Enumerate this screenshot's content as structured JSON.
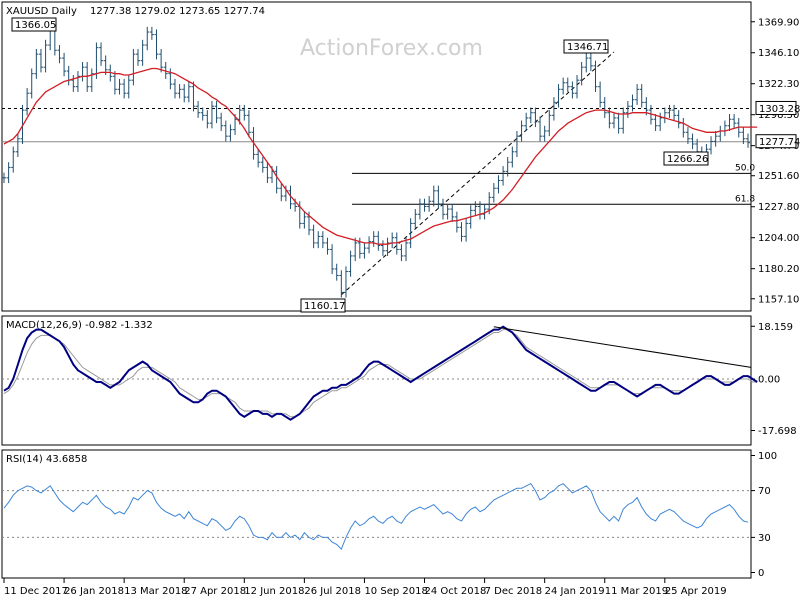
{
  "chart_data": {
    "type": "line",
    "watermark": "ActionForex.com",
    "price_panel": {
      "title": "XAUUSD Daily",
      "ohlc": "1277.38 1279.02 1273.65 1277.74",
      "y_ticks": [
        "1369.90",
        "1346.10",
        "1322.30",
        "1298.50",
        "1274.70",
        "1251.60",
        "1227.80",
        "1204.00",
        "1180.20",
        "1157.10"
      ],
      "y_tick_values": [
        1369.9,
        1346.1,
        1322.3,
        1298.5,
        1274.7,
        1251.6,
        1227.8,
        1204.0,
        1180.2,
        1157.1
      ],
      "ylim": [
        1150.0,
        1382.0
      ],
      "last_price": "1277.74",
      "level_marker": "1303.28",
      "swing_labels": {
        "high1": "1366.05",
        "high2": "1346.71",
        "low1": "1160.17",
        "low2": "1266.26"
      },
      "fib_levels": [
        {
          "label": "50.0",
          "value": 1253.4
        },
        {
          "label": "61.8",
          "value": 1229.7
        }
      ],
      "series": [
        {
          "name": "price",
          "values": [
            1250,
            1258,
            1270,
            1280,
            1302,
            1315,
            1330,
            1345,
            1335,
            1352,
            1366,
            1348,
            1342,
            1332,
            1325,
            1320,
            1328,
            1335,
            1320,
            1330,
            1350,
            1340,
            1333,
            1328,
            1318,
            1322,
            1315,
            1325,
            1345,
            1340,
            1352,
            1362,
            1360,
            1345,
            1335,
            1330,
            1322,
            1315,
            1318,
            1312,
            1320,
            1305,
            1300,
            1298,
            1292,
            1305,
            1296,
            1290,
            1282,
            1287,
            1295,
            1302,
            1298,
            1285,
            1268,
            1262,
            1258,
            1250,
            1255,
            1242,
            1236,
            1240,
            1230,
            1228,
            1215,
            1220,
            1210,
            1200,
            1205,
            1200,
            1195,
            1180,
            1175,
            1162,
            1178,
            1190,
            1200,
            1192,
            1196,
            1201,
            1205,
            1198,
            1194,
            1200,
            1204,
            1195,
            1190,
            1200,
            1215,
            1222,
            1230,
            1228,
            1232,
            1240,
            1230,
            1222,
            1226,
            1220,
            1212,
            1205,
            1215,
            1225,
            1228,
            1222,
            1226,
            1235,
            1242,
            1248,
            1255,
            1262,
            1270,
            1282,
            1290,
            1296,
            1300,
            1293,
            1282,
            1286,
            1298,
            1308,
            1318,
            1323,
            1320,
            1315,
            1325,
            1335,
            1342,
            1336,
            1320,
            1308,
            1300,
            1292,
            1296,
            1288,
            1300,
            1305,
            1310,
            1318,
            1308,
            1302,
            1295,
            1290,
            1296,
            1300,
            1302,
            1298,
            1292,
            1285,
            1280,
            1276,
            1270,
            1266,
            1272,
            1278,
            1282,
            1286,
            1290,
            1295,
            1292,
            1285,
            1280,
            1277
          ]
        },
        {
          "name": "ma55",
          "values": [
            1276,
            1278,
            1280,
            1284,
            1290,
            1296,
            1302,
            1308,
            1312,
            1316,
            1318,
            1320,
            1322,
            1324,
            1325,
            1326,
            1327,
            1328,
            1328,
            1329,
            1330,
            1331,
            1331,
            1331,
            1330,
            1330,
            1329,
            1329,
            1330,
            1331,
            1332,
            1333,
            1334,
            1334,
            1333,
            1332,
            1331,
            1330,
            1328,
            1326,
            1324,
            1322,
            1319,
            1317,
            1315,
            1312,
            1310,
            1307,
            1305,
            1301,
            1297,
            1293,
            1288,
            1282,
            1277,
            1272,
            1267,
            1262,
            1257,
            1251,
            1246,
            1241,
            1236,
            1232,
            1228,
            1224,
            1221,
            1218,
            1215,
            1212,
            1210,
            1208,
            1206,
            1205,
            1204,
            1203,
            1202,
            1201,
            1200,
            1200,
            1200,
            1199,
            1199,
            1199,
            1200,
            1200,
            1201,
            1202,
            1203,
            1205,
            1207,
            1209,
            1211,
            1213,
            1214,
            1215,
            1216,
            1217,
            1217,
            1218,
            1219,
            1220,
            1221,
            1222,
            1223,
            1225,
            1227,
            1230,
            1233,
            1237,
            1241,
            1246,
            1251,
            1256,
            1261,
            1266,
            1270,
            1274,
            1278,
            1282,
            1286,
            1289,
            1292,
            1294,
            1296,
            1298,
            1300,
            1301,
            1302,
            1302,
            1302,
            1301,
            1300,
            1299,
            1299,
            1299,
            1300,
            1300,
            1300,
            1300,
            1299,
            1298,
            1297,
            1296,
            1295,
            1294,
            1293,
            1292,
            1290,
            1288,
            1287,
            1286,
            1285,
            1285,
            1285,
            1286,
            1286,
            1287,
            1288,
            1289,
            1289,
            1289,
            1289,
            1289
          ]
        }
      ]
    },
    "macd_panel": {
      "title": "MACD(12,26,9) -0.982 -1.332",
      "y_ticks": [
        "18.159",
        "0.00",
        "-17.698"
      ],
      "y_tick_values": [
        18.159,
        0,
        -17.698
      ],
      "ylim": [
        -22,
        21
      ],
      "series": [
        {
          "name": "macd",
          "values": [
            -4,
            -3,
            0,
            5,
            10,
            14,
            16,
            17,
            17,
            16,
            15,
            14,
            13,
            11,
            8,
            5,
            3,
            2,
            1,
            0,
            -1,
            -1,
            -2,
            -3,
            -2,
            -1,
            1,
            3,
            4,
            5,
            6,
            5,
            3,
            2,
            1,
            0,
            -1,
            -3,
            -5,
            -6,
            -7,
            -8,
            -8,
            -7,
            -5,
            -4,
            -4,
            -5,
            -6,
            -8,
            -10,
            -12,
            -13,
            -12,
            -11,
            -11,
            -12,
            -12,
            -13,
            -12,
            -12,
            -13,
            -14,
            -13,
            -12,
            -10,
            -8,
            -6,
            -5,
            -4,
            -4,
            -3,
            -3,
            -2,
            -2,
            -1,
            0,
            1,
            3,
            5,
            6,
            6,
            5,
            4,
            3,
            2,
            1,
            0,
            -1,
            0,
            1,
            2,
            3,
            4,
            5,
            6,
            7,
            8,
            9,
            10,
            11,
            12,
            13,
            14,
            15,
            16,
            17,
            17,
            18,
            17,
            16,
            14,
            12,
            10,
            9,
            8,
            7,
            6,
            5,
            4,
            3,
            2,
            1,
            0,
            -1,
            -2,
            -3,
            -4,
            -4,
            -3,
            -2,
            -1,
            -1,
            -2,
            -3,
            -4,
            -5,
            -6,
            -5,
            -4,
            -3,
            -2,
            -2,
            -3,
            -4,
            -5,
            -5,
            -4,
            -3,
            -2,
            -1,
            0,
            1,
            1,
            0,
            -1,
            -2,
            -2,
            -1,
            0,
            1,
            1,
            0,
            -1
          ]
        },
        {
          "name": "signal",
          "values": [
            -5,
            -4,
            -2,
            1,
            5,
            9,
            12,
            14,
            15,
            15,
            15,
            14,
            13,
            12,
            10,
            8,
            6,
            4,
            3,
            2,
            1,
            0,
            -1,
            -2,
            -2,
            -2,
            -1,
            0,
            1,
            3,
            4,
            4,
            4,
            3,
            2,
            1,
            0,
            -1,
            -3,
            -4,
            -5,
            -6,
            -7,
            -7,
            -6,
            -5,
            -5,
            -5,
            -6,
            -7,
            -8,
            -10,
            -11,
            -11,
            -11,
            -11,
            -11,
            -11,
            -12,
            -12,
            -12,
            -12,
            -13,
            -13,
            -12,
            -11,
            -10,
            -8,
            -7,
            -6,
            -5,
            -4,
            -4,
            -3,
            -3,
            -2,
            -1,
            0,
            1,
            3,
            4,
            5,
            5,
            5,
            4,
            3,
            2,
            1,
            0,
            0,
            0,
            1,
            2,
            3,
            4,
            5,
            6,
            7,
            8,
            9,
            10,
            11,
            12,
            13,
            14,
            15,
            16,
            16,
            17,
            17,
            16,
            15,
            13,
            11,
            10,
            9,
            8,
            7,
            6,
            5,
            4,
            3,
            2,
            1,
            0,
            -1,
            -2,
            -3,
            -3,
            -3,
            -2,
            -2,
            -2,
            -2,
            -3,
            -4,
            -5,
            -5,
            -5,
            -4,
            -3,
            -3,
            -3,
            -3,
            -4,
            -4,
            -4,
            -4,
            -3,
            -2,
            -1,
            0,
            0,
            0,
            0,
            -1,
            -1,
            -1,
            -1,
            0,
            0,
            0,
            -1,
            -1
          ]
        }
      ]
    },
    "rsi_panel": {
      "title": "RSI(14) 43.6858",
      "y_ticks": [
        "100",
        "70",
        "30",
        "0"
      ],
      "y_tick_values": [
        100,
        70,
        30,
        0
      ],
      "ylim": [
        -3,
        103
      ],
      "series": [
        {
          "name": "rsi",
          "values": [
            55,
            60,
            66,
            70,
            72,
            74,
            73,
            70,
            68,
            71,
            74,
            68,
            62,
            58,
            55,
            52,
            56,
            60,
            58,
            62,
            66,
            60,
            56,
            54,
            50,
            52,
            50,
            56,
            64,
            62,
            66,
            70,
            68,
            60,
            55,
            52,
            50,
            48,
            50,
            46,
            52,
            46,
            44,
            42,
            40,
            46,
            44,
            40,
            36,
            38,
            44,
            48,
            46,
            40,
            32,
            30,
            30,
            28,
            34,
            30,
            30,
            34,
            30,
            32,
            28,
            34,
            30,
            28,
            32,
            30,
            30,
            26,
            24,
            20,
            30,
            38,
            44,
            40,
            42,
            46,
            48,
            44,
            42,
            46,
            48,
            44,
            42,
            48,
            52,
            54,
            56,
            54,
            56,
            58,
            54,
            50,
            52,
            50,
            46,
            44,
            50,
            54,
            56,
            52,
            54,
            58,
            62,
            64,
            66,
            68,
            70,
            72,
            72,
            74,
            76,
            70,
            62,
            64,
            68,
            70,
            74,
            76,
            72,
            68,
            70,
            72,
            74,
            70,
            60,
            52,
            48,
            44,
            48,
            44,
            54,
            58,
            60,
            64,
            56,
            50,
            46,
            44,
            50,
            52,
            54,
            52,
            48,
            44,
            42,
            40,
            38,
            40,
            46,
            50,
            52,
            54,
            56,
            58,
            54,
            48,
            44,
            43
          ]
        }
      ]
    },
    "x_ticks": [
      "11 Dec 2017",
      "26 Jan 2018",
      "13 Mar 2018",
      "27 Apr 2018",
      "12 Jun 2018",
      "26 Jul 2018",
      "10 Sep 2018",
      "24 Oct 2018",
      "7 Dec 2018",
      "24 Jan 2019",
      "11 Mar 2019",
      "25 Apr 2019"
    ],
    "x_tick_index": [
      0,
      13,
      26,
      39,
      52,
      65,
      78,
      91,
      104,
      117,
      130,
      143
    ]
  },
  "colors": {
    "price": "#1f4e6e",
    "ma55": "#d21f26",
    "macd": "#000080",
    "signal": "#9a9a9a",
    "rsi": "#3f86d6",
    "grid": "#888888",
    "text": "#000000",
    "watermark": "#d0d0d0"
  }
}
